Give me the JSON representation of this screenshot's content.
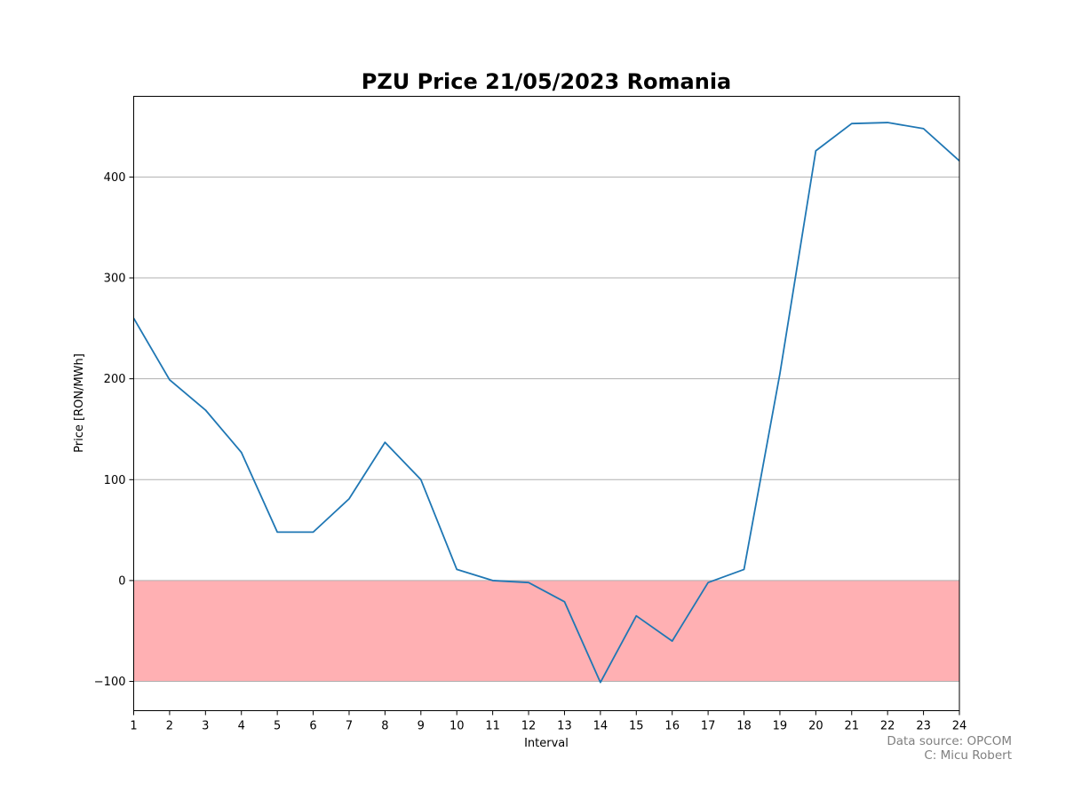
{
  "chart_data": {
    "type": "line",
    "title": "PZU Price 21/05/2023 Romania",
    "xlabel": "Interval",
    "ylabel": "Price [RON/MWh]",
    "x": [
      1,
      2,
      3,
      4,
      5,
      6,
      7,
      8,
      9,
      10,
      11,
      12,
      13,
      14,
      15,
      16,
      17,
      18,
      19,
      20,
      21,
      22,
      23,
      24
    ],
    "series": [
      {
        "values": [
          260,
          199,
          169,
          127,
          48,
          48,
          81,
          137,
          100,
          11,
          0,
          -2,
          -21,
          -101,
          -35,
          -60,
          -2,
          11,
          205,
          426,
          453,
          454,
          448,
          416
        ],
        "color": "#1f77b4"
      }
    ],
    "xlim": [
      1,
      24
    ],
    "ylim": [
      -129,
      480
    ],
    "xticks": [
      1,
      2,
      3,
      4,
      5,
      6,
      7,
      8,
      9,
      10,
      11,
      12,
      13,
      14,
      15,
      16,
      17,
      18,
      19,
      20,
      21,
      22,
      23,
      24
    ],
    "yticks": [
      -100,
      0,
      100,
      200,
      300,
      400
    ],
    "grid": "horizontal",
    "negative_band": {
      "from": -100,
      "to": 0,
      "color": "#ffb0b3"
    },
    "legend": "none"
  },
  "credits": {
    "source": "Data source: OPCOM",
    "author": "C: Micu Robert"
  }
}
